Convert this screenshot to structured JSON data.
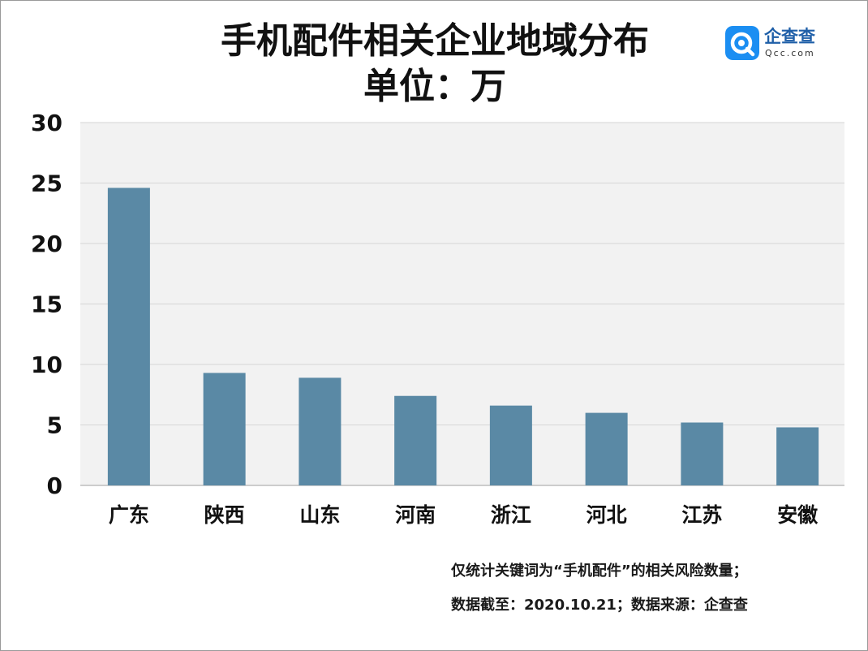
{
  "chart_data": {
    "type": "bar",
    "title": "手机配件相关企业地域分布",
    "subtitle": "单位：万",
    "xlabel": "",
    "ylabel": "",
    "categories": [
      "广东",
      "陕西",
      "山东",
      "河南",
      "浙江",
      "河北",
      "江苏",
      "安徽"
    ],
    "values": [
      24.6,
      9.3,
      8.9,
      7.4,
      6.6,
      6.0,
      5.2,
      4.8
    ],
    "ylim": [
      0,
      30
    ],
    "yticks": [
      0,
      5,
      10,
      15,
      20,
      25,
      30
    ],
    "grid": true,
    "legend": "none",
    "bar_color": "#5a89a5",
    "plot_background": "#f2f2f2",
    "grid_color": "#d6d6d6"
  },
  "logo": {
    "name": "企查查",
    "domain": "Qcc.com",
    "icon": "qcc-logo-icon",
    "color": "#1b8ef2",
    "text_color": "#1f5fa8"
  },
  "footnotes": {
    "line1": "仅统计关键词为“手机配件”的相关风险数量；",
    "line2": "数据截至：2020.10.21；数据来源：企查查"
  }
}
